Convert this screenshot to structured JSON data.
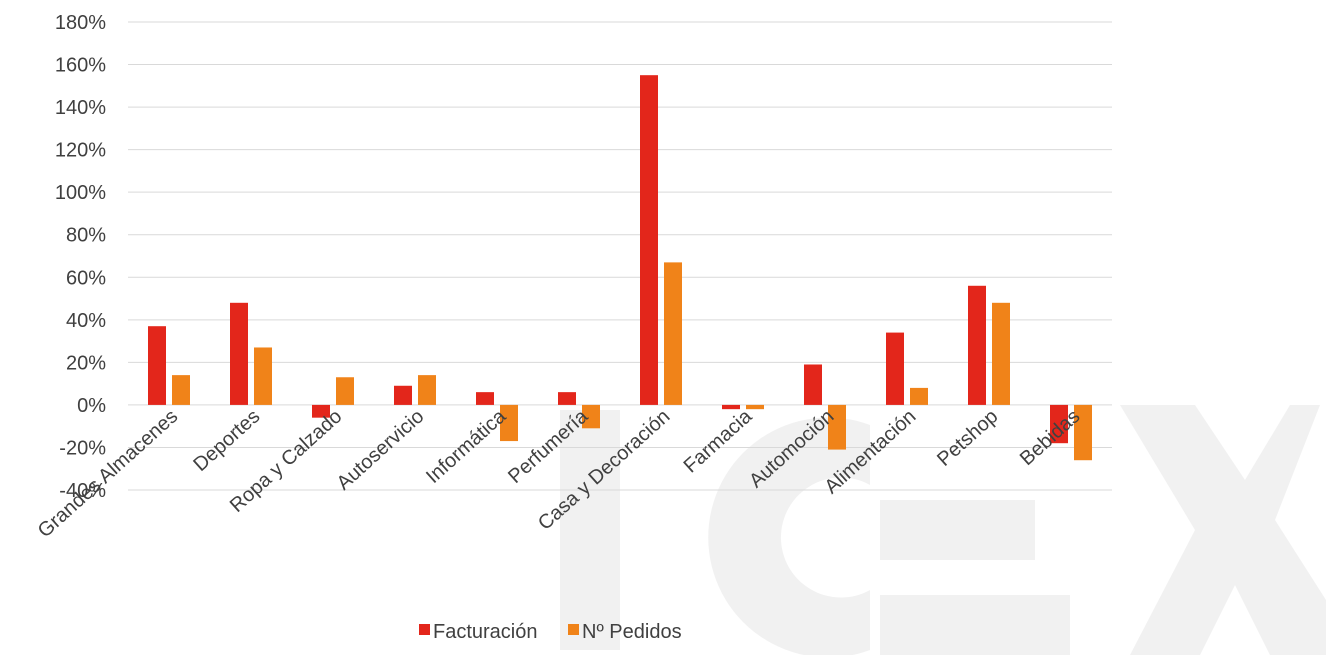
{
  "watermark": {
    "text": "ICEX"
  },
  "chart_data": {
    "type": "bar",
    "categories": [
      "Grandes Almacenes",
      "Deportes",
      "Ropa y Calzado",
      "Autoservicio",
      "Informática",
      "Perfumería",
      "Casa y Decoración",
      "Farmacia",
      "Automoción",
      "Alimentación",
      "Petshop",
      "Bebidas"
    ],
    "series": [
      {
        "name": "Facturación",
        "color": "#e3261b",
        "values": [
          37,
          48,
          -6,
          9,
          6,
          6,
          155,
          -2,
          19,
          34,
          56,
          -18
        ]
      },
      {
        "name": "Nº Pedidos",
        "color": "#f08319",
        "values": [
          14,
          27,
          13,
          14,
          -17,
          -11,
          67,
          -2,
          -21,
          8,
          48,
          -26
        ]
      }
    ],
    "ylim": [
      -40,
      180
    ],
    "yticks": [
      -40,
      -20,
      0,
      20,
      40,
      60,
      80,
      100,
      120,
      140,
      160,
      180
    ],
    "ytick_labels": [
      "-40%",
      "-20%",
      "0%",
      "20%",
      "40%",
      "60%",
      "80%",
      "100%",
      "120%",
      "140%",
      "160%",
      "180%"
    ],
    "grid": true,
    "legend_position": "bottom",
    "title": "",
    "xlabel": "",
    "ylabel": ""
  }
}
